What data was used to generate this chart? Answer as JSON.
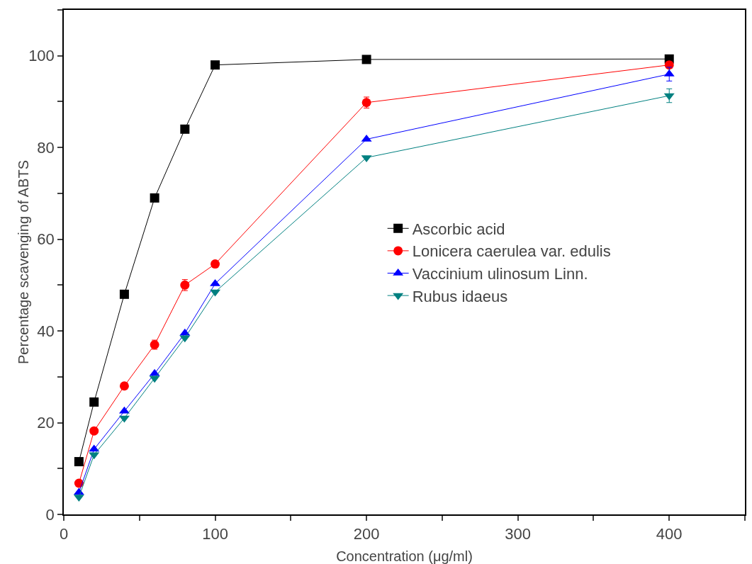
{
  "chart_data": {
    "type": "line",
    "xlabel": "Concentration (μg/ml)",
    "ylabel": "Percentage scavenging of ABTS",
    "x": [
      10,
      20,
      40,
      60,
      80,
      100,
      200,
      400
    ],
    "series": [
      {
        "name": "Ascorbic acid",
        "color": "#000000",
        "marker": "square",
        "values": [
          11.5,
          24.5,
          48,
          69,
          84,
          98,
          99.2,
          99.3
        ]
      },
      {
        "name": "Lonicera caerulea var. edulis",
        "color": "#ff0000",
        "marker": "circle",
        "values": [
          6.8,
          18.2,
          28,
          37,
          50,
          54.6,
          89.8,
          98
        ],
        "errors": [
          null,
          null,
          null,
          1,
          1.2,
          null,
          1.2,
          null
        ]
      },
      {
        "name": "Vaccinium ulinosum Linn.",
        "color": "#0000ff",
        "marker": "triangle",
        "values": [
          4.8,
          14.2,
          22.5,
          30.7,
          39.5,
          50.3,
          81.8,
          96
        ],
        "errors": [
          null,
          null,
          null,
          null,
          null,
          null,
          null,
          1.5
        ]
      },
      {
        "name": "Rubus idaeus",
        "color": "#008080",
        "marker": "triangle-down",
        "values": [
          3.8,
          13,
          21,
          29.7,
          38.5,
          48.5,
          77.8,
          91.3
        ],
        "errors": [
          null,
          null,
          null,
          null,
          null,
          null,
          null,
          1.5
        ]
      }
    ],
    "xlim": [
      0,
      450
    ],
    "ylim": [
      0,
      110
    ],
    "xticks": [
      0,
      {
        "value": 50,
        "label": null
      },
      100,
      {
        "value": 150,
        "label": null
      },
      200,
      {
        "value": 250,
        "label": null
      },
      300,
      {
        "value": 350,
        "label": null
      },
      400,
      {
        "value": 450,
        "label": null
      }
    ],
    "yticks": [
      0,
      {
        "value": 10,
        "label": null
      },
      20,
      {
        "value": 30,
        "label": null
      },
      40,
      {
        "value": 50,
        "label": null
      },
      60,
      {
        "value": 70,
        "label": null
      },
      80,
      {
        "value": 90,
        "label": null
      },
      100,
      {
        "value": 110,
        "label": null
      }
    ],
    "grid": false,
    "legend": "right",
    "line_style": "solid"
  }
}
